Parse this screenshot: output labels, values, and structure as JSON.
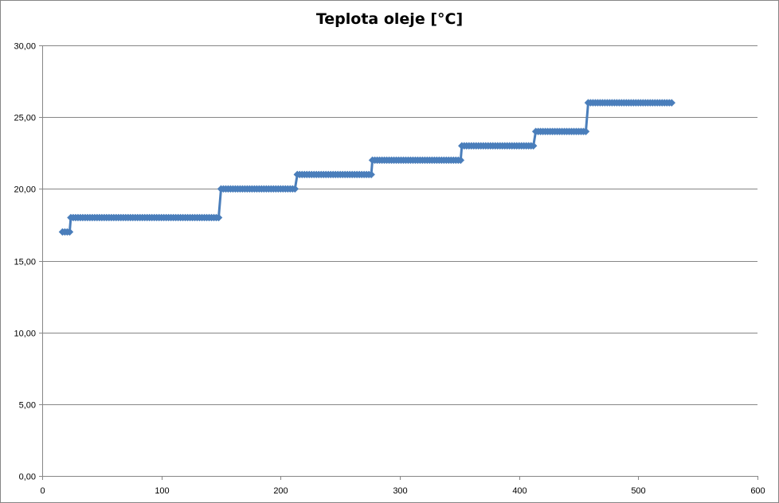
{
  "chart_data": {
    "type": "line",
    "title": "Teplota oleje [°C]",
    "xlabel": "",
    "ylabel": "",
    "xlim": [
      0,
      600
    ],
    "ylim": [
      0,
      30
    ],
    "x_ticks": [
      0,
      100,
      200,
      300,
      400,
      500,
      600
    ],
    "x_tick_labels": [
      "0",
      "100",
      "200",
      "300",
      "400",
      "500",
      "600"
    ],
    "y_ticks": [
      0,
      5,
      10,
      15,
      20,
      25,
      30
    ],
    "y_tick_labels": [
      "0,00",
      "5,00",
      "10,00",
      "15,00",
      "20,00",
      "25,00",
      "30,00"
    ],
    "grid": "horizontal major gridlines",
    "legend": "none",
    "colors": {
      "series": "#4a7ebb",
      "grid": "#868686",
      "axis": "#868686"
    },
    "series": [
      {
        "marker": "diamond",
        "segments": [
          {
            "x_start": 17,
            "x_end": 23,
            "step": 2,
            "y": 17
          },
          {
            "x_start": 24,
            "x_end": 149,
            "step": 2,
            "y": 18
          },
          {
            "x_start": 150,
            "x_end": 213,
            "step": 2,
            "y": 20
          },
          {
            "x_start": 214,
            "x_end": 276,
            "step": 2,
            "y": 21
          },
          {
            "x_start": 277,
            "x_end": 351,
            "step": 2,
            "y": 22
          },
          {
            "x_start": 352,
            "x_end": 413,
            "step": 2,
            "y": 23
          },
          {
            "x_start": 414,
            "x_end": 457,
            "step": 2,
            "y": 24
          },
          {
            "x_start": 458,
            "x_end": 528,
            "step": 2,
            "y": 26
          }
        ]
      }
    ]
  }
}
